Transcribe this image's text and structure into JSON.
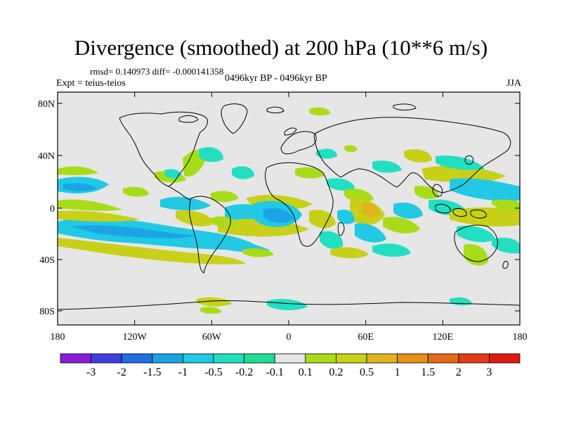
{
  "header": {
    "title": "Divergence (smoothed) at 200 hPa (10**6 m/s)",
    "rmsd_line": "rmsd= 0.140973 diff= -0.000141358",
    "expt_line": "Expt = teius-teios",
    "period_line": "0496kyr BP - 0496kyr BP",
    "season": "JJA"
  },
  "axes": {
    "lat_labels": [
      "80N",
      "40N",
      "0",
      "40S",
      "80S"
    ],
    "lon_labels": [
      "180",
      "120W",
      "60W",
      "0",
      "60E",
      "120E",
      "180"
    ]
  },
  "colorbar": {
    "colors": [
      "#8a1cd6",
      "#3f3fdf",
      "#1f6fe0",
      "#1aa4e6",
      "#21c9e4",
      "#22dfc2",
      "#1edc95",
      "#e6e6e6",
      "#a8dc18",
      "#c8d018",
      "#e0b41c",
      "#e79018",
      "#e46a18",
      "#e23b16",
      "#e11912"
    ],
    "labels": [
      "-3",
      "-2",
      "-1.5",
      "-1",
      "-0.5",
      "-0.2",
      "-0.1",
      "0.1",
      "0.2",
      "0.5",
      "1",
      "1.5",
      "2",
      "3"
    ]
  },
  "chart_data": {
    "type": "heatmap",
    "title": "Divergence (smoothed) at 200 hPa (10**6 m/s)",
    "x_range": [
      -180,
      180
    ],
    "y_range": [
      -90,
      90
    ],
    "contour_levels": [
      -3,
      -2,
      -1.5,
      -1,
      -0.5,
      -0.2,
      -0.1,
      0.1,
      0.2,
      0.5,
      1,
      1.5,
      2,
      3
    ],
    "regions": [
      {
        "lon": -160,
        "lat": 12,
        "value": -0.3
      },
      {
        "lon": -150,
        "lat": -20,
        "value": -0.3
      },
      {
        "lon": -145,
        "lat": -30,
        "value": 0.3
      },
      {
        "lon": -125,
        "lat": -18,
        "value": 0.3
      },
      {
        "lon": -110,
        "lat": -30,
        "value": -0.3
      },
      {
        "lon": -100,
        "lat": -45,
        "value": 0.3
      },
      {
        "lon": -75,
        "lat": 35,
        "value": -0.3
      },
      {
        "lon": -40,
        "lat": 10,
        "value": -0.3
      },
      {
        "lon": -10,
        "lat": -5,
        "value": -0.6
      },
      {
        "lon": -5,
        "lat": -20,
        "value": 0.3
      },
      {
        "lon": 60,
        "lat": -10,
        "value": 0.6
      },
      {
        "lon": 70,
        "lat": 15,
        "value": -0.3
      },
      {
        "lon": 110,
        "lat": 35,
        "value": 0.6
      },
      {
        "lon": 140,
        "lat": 10,
        "value": -0.3
      },
      {
        "lon": 150,
        "lat": -20,
        "value": 0.3
      },
      {
        "lon": -100,
        "lat": -70,
        "value": -0.2
      },
      {
        "lon": 10,
        "lat": -70,
        "value": -0.2
      }
    ]
  }
}
